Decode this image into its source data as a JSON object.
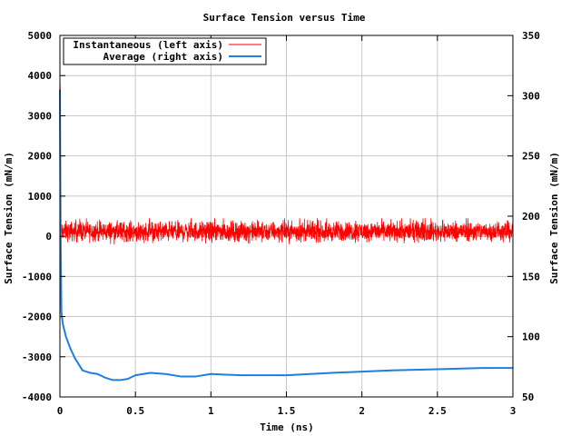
{
  "chart_data": {
    "type": "line",
    "title": "Surface Tension versus Time",
    "xlabel": "Time (ns)",
    "ylabel_left": "Surface Tension (mN/m)",
    "ylabel_right": "Surface Tension (mN/m)",
    "xlim": [
      0,
      3
    ],
    "ylim_left": [
      -4000,
      5000
    ],
    "ylim_right": [
      50,
      350
    ],
    "x_ticks": [
      "0",
      "0.5",
      "1",
      "1.5",
      "2",
      "2.5",
      "3"
    ],
    "y_left_ticks": [
      "-4000",
      "-3000",
      "-2000",
      "-1000",
      "0",
      "1000",
      "2000",
      "3000",
      "4000",
      "5000"
    ],
    "y_right_ticks": [
      "50",
      "100",
      "150",
      "200",
      "250",
      "300",
      "350"
    ],
    "grid": true,
    "legend_position": "top-left",
    "series": [
      {
        "name": "Instantaneous (left axis)",
        "axis": "left",
        "color": "#ff0000",
        "style": "noisy",
        "mean": 120,
        "amplitude": 170,
        "range": [
          -300,
          450
        ],
        "x_range": [
          0,
          3
        ],
        "initial_spike": [
          [
            0,
            4000
          ],
          [
            0.003,
            3500
          ],
          [
            0.006,
            -1000
          ]
        ]
      },
      {
        "name": "Average (right axis)",
        "axis": "right",
        "color": "#1f7fe0",
        "x": [
          0,
          0.002,
          0.005,
          0.01,
          0.02,
          0.04,
          0.07,
          0.1,
          0.15,
          0.2,
          0.25,
          0.3,
          0.35,
          0.4,
          0.45,
          0.5,
          0.6,
          0.7,
          0.8,
          0.9,
          1.0,
          1.2,
          1.5,
          1.8,
          2.0,
          2.2,
          2.5,
          2.8,
          3.0
        ],
        "values": [
          305,
          250,
          180,
          120,
          110,
          100,
          90,
          82,
          72,
          70,
          69,
          66,
          64,
          64,
          65,
          68,
          70,
          69,
          67,
          67,
          69,
          68,
          68,
          70,
          71,
          72,
          73,
          74,
          74
        ]
      }
    ]
  }
}
